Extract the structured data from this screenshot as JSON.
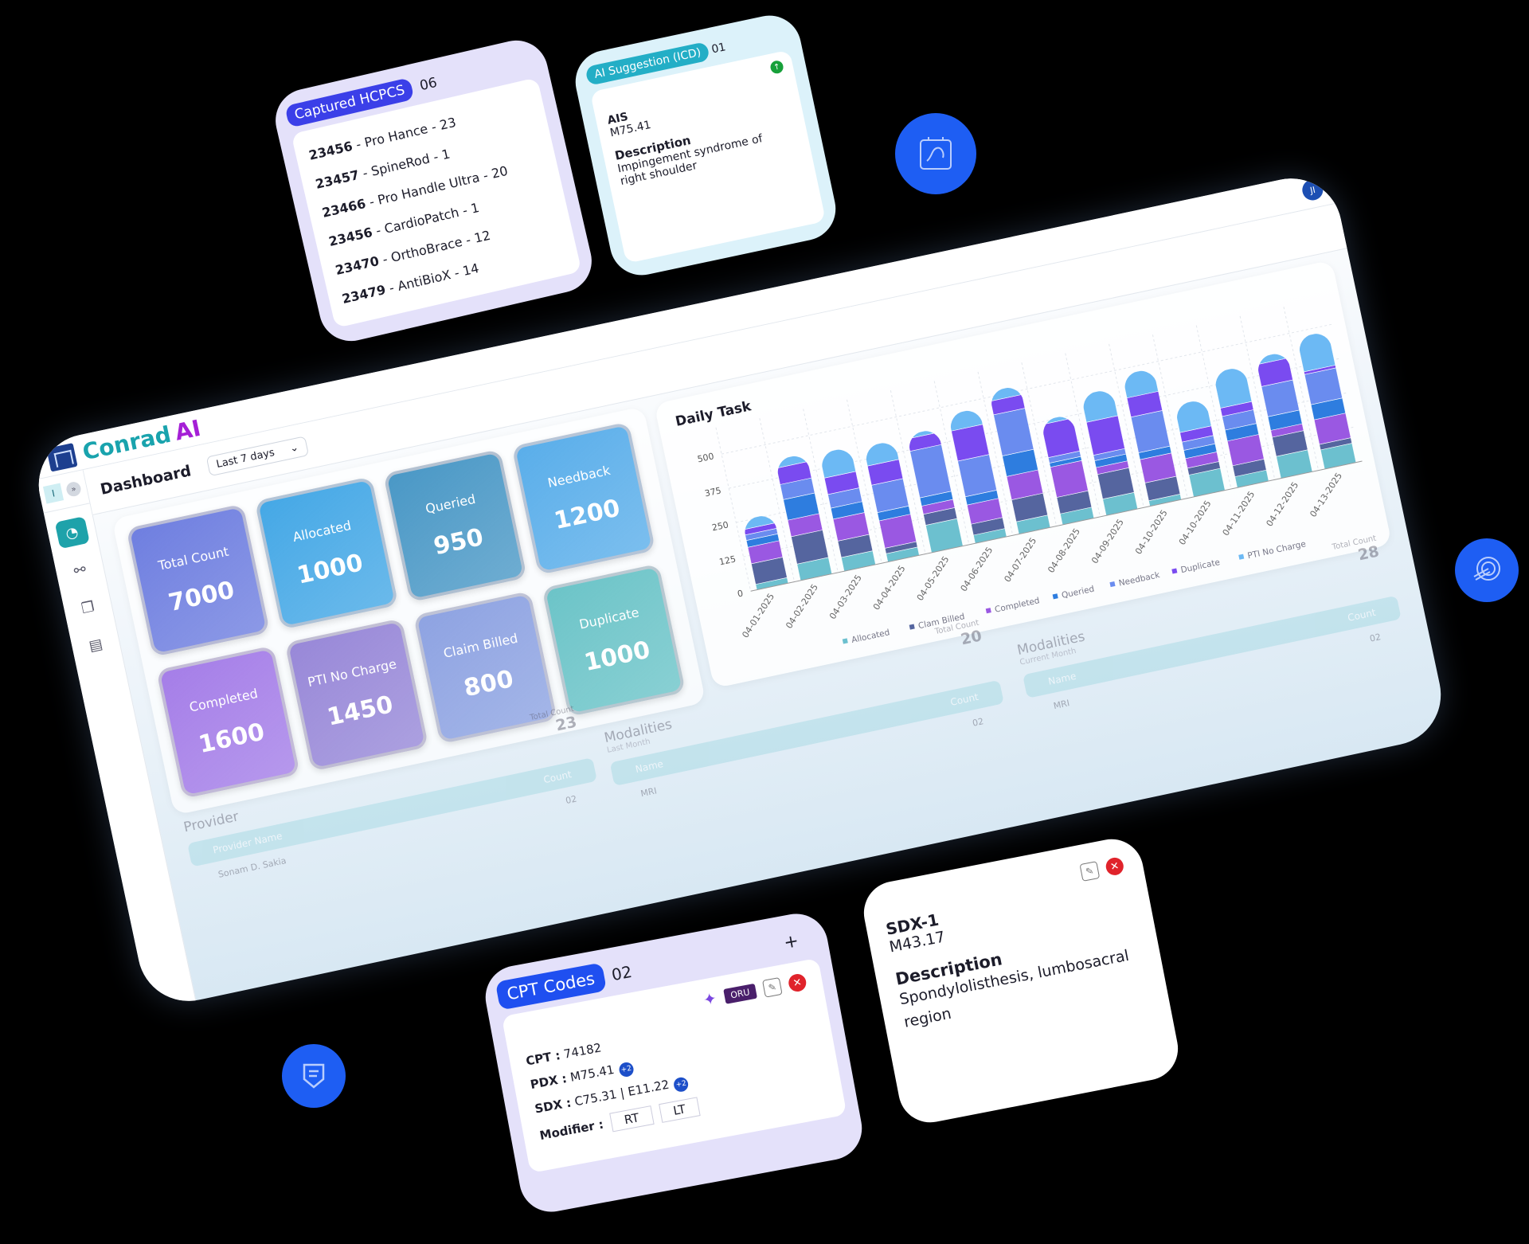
{
  "app": {
    "brand_name": "Conrad",
    "brand_suffix": "AI",
    "avatar_initials": "JI",
    "page_title": "Dashboard",
    "date_filter": "Last 7 days",
    "sidebar_selector": "I"
  },
  "sidebar": {
    "items": [
      {
        "icon": "speedometer-icon",
        "active": true
      },
      {
        "icon": "workflow-icon",
        "active": false
      },
      {
        "icon": "documents-icon",
        "active": false
      },
      {
        "icon": "report-icon",
        "active": false
      }
    ]
  },
  "tiles": [
    {
      "label": "Total Count",
      "value": "7000",
      "color": "#6f7fe0"
    },
    {
      "label": "Allocated",
      "value": "1000",
      "color": "#45a8e6"
    },
    {
      "label": "Queried",
      "value": "950",
      "color": "#4a98c6"
    },
    {
      "label": "Needback",
      "value": "1200",
      "color": "#5aaeea"
    },
    {
      "label": "Completed",
      "value": "1600",
      "color": "#a57ee8"
    },
    {
      "label": "PTI No Charge",
      "value": "1450",
      "color": "#9888d8"
    },
    {
      "label": "Claim Billed",
      "value": "800",
      "color": "#8ea3e2"
    },
    {
      "label": "Duplicate",
      "value": "1000",
      "color": "#6cc4c8"
    }
  ],
  "chart_data": {
    "type": "bar",
    "stacked": true,
    "title": "Daily Task",
    "categories": [
      "04-01-2025",
      "04-02-2025",
      "04-03-2025",
      "04-04-2025",
      "04-05-2025",
      "04-06-2025",
      "04-07-2025",
      "04-08-2025",
      "04-09-2025",
      "04-10-2025",
      "04-10-2025",
      "04-11-2025",
      "04-12-2025",
      "04-13-2025"
    ],
    "yticks": [
      0,
      125,
      250,
      375,
      500
    ],
    "ylim": [
      0,
      540
    ],
    "grid": true,
    "legend": "bottom",
    "series": [
      {
        "name": "Allocated",
        "color": "#6cc0cf",
        "values": [
          20,
          60,
          50,
          30,
          100,
          30,
          45,
          40,
          60,
          20,
          80,
          40,
          80,
          70
        ]
      },
      {
        "name": "Clam Billed",
        "color": "#55659f",
        "values": [
          75,
          100,
          60,
          20,
          40,
          40,
          80,
          60,
          90,
          65,
          25,
          40,
          70,
          20
        ]
      },
      {
        "name": "Completed",
        "color": "#9a58e2",
        "values": [
          60,
          60,
          80,
          100,
          30,
          70,
          85,
          110,
          25,
          85,
          35,
          90,
          25,
          90
        ]
      },
      {
        "name": "Queried",
        "color": "#2e7ddf",
        "values": [
          25,
          75,
          40,
          30,
          30,
          30,
          75,
          15,
          25,
          25,
          30,
          40,
          50,
          55
        ]
      },
      {
        "name": "Needback",
        "color": "#6a8cef",
        "values": [
          20,
          55,
          50,
          100,
          170,
          130,
          150,
          20,
          20,
          130,
          30,
          50,
          110,
          110
        ]
      },
      {
        "name": "Duplicate",
        "color": "#7a4bf0",
        "values": [
          20,
          60,
          60,
          70,
          45,
          110,
          50,
          120,
          120,
          70,
          35,
          30,
          80,
          10
        ]
      },
      {
        "name": "PTI No Charge",
        "color": "#6cb9f4",
        "values": [
          35,
          30,
          90,
          70,
          15,
          60,
          35,
          15,
          100,
          85,
          100,
          130,
          25,
          125
        ]
      }
    ]
  },
  "provider": {
    "title": "Provider",
    "total_label": "Total Count",
    "total": "23",
    "col_name": "Provider Name",
    "col_count": "Count",
    "rows": [
      {
        "name": "Sonam D. Sakia",
        "count": "02"
      }
    ]
  },
  "modalities_last": {
    "title": "Modalities",
    "subtitle": "Last Month",
    "total_label": "Total Count",
    "total": "20",
    "col_name": "Name",
    "col_count": "Count",
    "rows": [
      {
        "name": "MRI",
        "count": "02"
      }
    ]
  },
  "modalities_current": {
    "title": "Modalities",
    "subtitle": "Current Month",
    "total_label": "Total Count",
    "total": "28",
    "col_name": "Name",
    "col_count": "Count",
    "rows": [
      {
        "name": "MRI",
        "count": "02"
      }
    ]
  },
  "hcpcs": {
    "title": "Captured HCPCS",
    "count": "06",
    "items": [
      {
        "code": "23456",
        "text": " - Pro Hance - 23"
      },
      {
        "code": "23457",
        "text": " - SpineRod - 1"
      },
      {
        "code": "23466",
        "text": " - Pro Handle Ultra - 20"
      },
      {
        "code": "23456",
        "text": " - CardioPatch - 1"
      },
      {
        "code": "23470",
        "text": " - OrthoBrace - 12"
      },
      {
        "code": "23479",
        "text": " - AntiBioX - 14"
      }
    ]
  },
  "ai_suggestion": {
    "title": "AI Suggestion (ICD)",
    "count": "01",
    "code_label": "AIS",
    "code": "M75.41",
    "desc_label": "Description",
    "desc": "Impingement syndrome of right shoulder"
  },
  "cpt": {
    "title": "CPT Codes",
    "count": "02",
    "add": "+",
    "badge": "ORU",
    "cpt_label": "CPT :",
    "cpt": "74182",
    "pdx_label": "PDX :",
    "pdx": "M75.41",
    "pdx_more": "+2",
    "sdx_label": "SDX :",
    "sdx1": "C75.31",
    "sdx2": "E11.22",
    "sdx_more": "+2",
    "modifier_label": "Modifier :",
    "mod1": "RT",
    "mod2": "LT"
  },
  "sdx": {
    "title": "SDX-1",
    "code": "M43.17",
    "desc_label": "Description",
    "desc": "Spondylolisthesis, lumbosacral region"
  },
  "colors": {
    "accent_blue": "#1e5ef3",
    "teal": "#1ea2aa",
    "purple": "#a51fd6",
    "close_red": "#e0232b"
  }
}
